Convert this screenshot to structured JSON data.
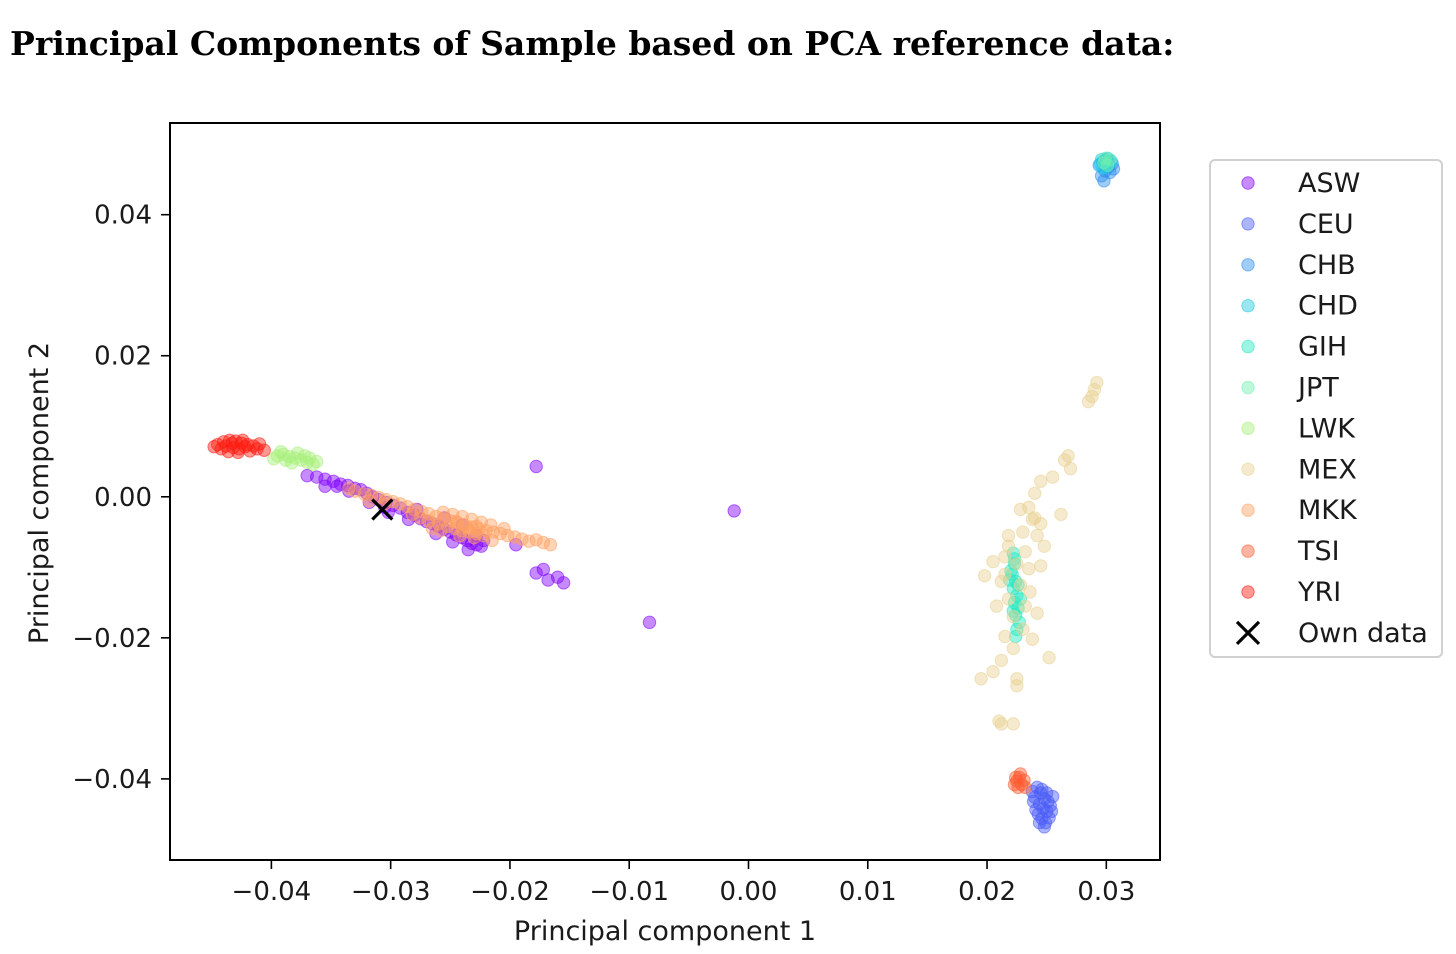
{
  "page": {
    "title": "Principal Components of Sample based on PCA reference data:"
  },
  "chart_data": {
    "type": "scatter",
    "title": "",
    "xlabel": "Principal component 1",
    "ylabel": "Principal component 2",
    "xlim": [
      -0.0485,
      0.0345
    ],
    "ylim": [
      -0.0515,
      0.053
    ],
    "xticks": [
      -0.04,
      -0.03,
      -0.02,
      -0.01,
      0.0,
      0.01,
      0.02,
      0.03
    ],
    "xtick_labels": [
      "−0.04",
      "−0.03",
      "−0.02",
      "−0.01",
      "0.00",
      "0.01",
      "0.02",
      "0.03"
    ],
    "yticks": [
      -0.04,
      -0.02,
      0.0,
      0.02,
      0.04
    ],
    "ytick_labels": [
      "−0.04",
      "−0.02",
      "0.00",
      "0.02",
      "0.04"
    ],
    "grid": false,
    "legend_position": "outside-right",
    "marker_opacity": 0.45,
    "series": [
      {
        "name": "ASW",
        "color": "#8000ff",
        "points": [
          [
            -0.0355,
            0.0025
          ],
          [
            -0.0348,
            0.0022
          ],
          [
            -0.0342,
            0.0018
          ],
          [
            -0.0336,
            0.0016
          ],
          [
            -0.033,
            0.0012
          ],
          [
            -0.0325,
            0.001
          ],
          [
            -0.032,
            0.0005
          ],
          [
            -0.0315,
            0.0
          ],
          [
            -0.031,
            -0.0004
          ],
          [
            -0.0304,
            -0.0008
          ],
          [
            -0.0298,
            -0.0012
          ],
          [
            -0.0292,
            -0.0016
          ],
          [
            -0.0286,
            -0.0022
          ],
          [
            -0.028,
            -0.0026
          ],
          [
            -0.0275,
            -0.0031
          ],
          [
            -0.027,
            -0.0035
          ],
          [
            -0.0265,
            -0.0038
          ],
          [
            -0.026,
            -0.0042
          ],
          [
            -0.0255,
            -0.0046
          ],
          [
            -0.025,
            -0.005
          ],
          [
            -0.0245,
            -0.0054
          ],
          [
            -0.024,
            -0.0058
          ],
          [
            -0.0236,
            -0.0062
          ],
          [
            -0.0232,
            -0.0066
          ],
          [
            -0.0228,
            -0.0068
          ],
          [
            -0.0224,
            -0.007
          ],
          [
            -0.0235,
            -0.0075
          ],
          [
            -0.0355,
            0.0015
          ],
          [
            -0.0335,
            0.0008
          ],
          [
            -0.0305,
            -0.0015
          ],
          [
            -0.0285,
            -0.0032
          ],
          [
            -0.0262,
            -0.0052
          ],
          [
            -0.0248,
            -0.0064
          ],
          [
            -0.024,
            -0.004
          ],
          [
            -0.0255,
            -0.003
          ],
          [
            -0.0278,
            -0.0018
          ],
          [
            -0.0195,
            -0.0068
          ],
          [
            -0.0178,
            0.0043
          ],
          [
            -0.0178,
            -0.0108
          ],
          [
            -0.0172,
            -0.0103
          ],
          [
            -0.0168,
            -0.0118
          ],
          [
            -0.016,
            -0.0114
          ],
          [
            -0.0155,
            -0.0122
          ],
          [
            -0.0083,
            -0.0178
          ],
          [
            -0.0012,
            -0.002
          ],
          [
            -0.037,
            0.003
          ],
          [
            -0.0362,
            0.0028
          ],
          [
            -0.0345,
            0.0015
          ],
          [
            -0.0318,
            -0.0008
          ],
          [
            -0.0302,
            -0.0022
          ],
          [
            -0.0228,
            -0.0055
          ],
          [
            -0.0222,
            -0.0062
          ]
        ]
      },
      {
        "name": "CEU",
        "color": "#4a5cf6",
        "points": [
          [
            0.0242,
            -0.0412
          ],
          [
            0.0245,
            -0.042
          ],
          [
            0.0248,
            -0.0428
          ],
          [
            0.0251,
            -0.0432
          ],
          [
            0.0244,
            -0.0436
          ],
          [
            0.0247,
            -0.0442
          ],
          [
            0.025,
            -0.0446
          ],
          [
            0.0253,
            -0.0438
          ],
          [
            0.024,
            -0.0426
          ],
          [
            0.0238,
            -0.0418
          ],
          [
            0.0243,
            -0.045
          ],
          [
            0.0246,
            -0.0456
          ],
          [
            0.0249,
            -0.0462
          ],
          [
            0.0252,
            -0.0455
          ],
          [
            0.0255,
            -0.0425
          ],
          [
            0.0241,
            -0.0444
          ],
          [
            0.0248,
            -0.0468
          ],
          [
            0.0244,
            -0.0462
          ],
          [
            0.0254,
            -0.0446
          ],
          [
            0.0239,
            -0.0432
          ],
          [
            0.0246,
            -0.0415
          ],
          [
            0.025,
            -0.042
          ]
        ]
      },
      {
        "name": "CHB",
        "color": "#2c8ff0",
        "points": [
          [
            0.0296,
            0.0455
          ],
          [
            0.0299,
            0.0462
          ],
          [
            0.0302,
            0.0468
          ],
          [
            0.0305,
            0.0472
          ],
          [
            0.0297,
            0.0475
          ],
          [
            0.03,
            0.0478
          ],
          [
            0.0303,
            0.046
          ],
          [
            0.0298,
            0.0448
          ],
          [
            0.0306,
            0.0465
          ],
          [
            0.0294,
            0.047
          ]
        ]
      },
      {
        "name": "CHD",
        "color": "#1ec8e0",
        "points": [
          [
            0.0295,
            0.0472
          ],
          [
            0.0298,
            0.0476
          ],
          [
            0.0301,
            0.048
          ],
          [
            0.0304,
            0.0476
          ],
          [
            0.0297,
            0.0466
          ],
          [
            0.0302,
            0.0472
          ],
          [
            0.03,
            0.0468
          ],
          [
            0.0296,
            0.0478
          ]
        ]
      },
      {
        "name": "GIH",
        "color": "#22e8c0",
        "points": [
          [
            0.0222,
            -0.008
          ],
          [
            0.0223,
            -0.0095
          ],
          [
            0.0221,
            -0.011
          ],
          [
            0.0224,
            -0.012
          ],
          [
            0.0222,
            -0.013
          ],
          [
            0.0225,
            -0.014
          ],
          [
            0.0223,
            -0.015
          ],
          [
            0.0226,
            -0.0158
          ],
          [
            0.0224,
            -0.0168
          ],
          [
            0.0227,
            -0.0178
          ],
          [
            0.0225,
            -0.0188
          ],
          [
            0.022,
            -0.0105
          ],
          [
            0.0228,
            -0.0145
          ],
          [
            0.0222,
            -0.0162
          ],
          [
            0.0226,
            -0.0125
          ],
          [
            0.0223,
            -0.0088
          ],
          [
            0.0219,
            -0.0118
          ],
          [
            0.0224,
            -0.0198
          ]
        ]
      },
      {
        "name": "JPT",
        "color": "#6ff0b0",
        "points": [
          [
            0.0298,
            0.0474
          ],
          [
            0.0301,
            0.047
          ],
          [
            0.0303,
            0.0478
          ],
          [
            0.0299,
            0.048
          ]
        ]
      },
      {
        "name": "LWK",
        "color": "#a8f07a",
        "points": [
          [
            -0.0395,
            0.0058
          ],
          [
            -0.039,
            0.006
          ],
          [
            -0.0385,
            0.0057
          ],
          [
            -0.038,
            0.0055
          ],
          [
            -0.0375,
            0.0052
          ],
          [
            -0.037,
            0.0049
          ],
          [
            -0.0365,
            0.0046
          ],
          [
            -0.0388,
            0.0052
          ],
          [
            -0.0378,
            0.0062
          ],
          [
            -0.0372,
            0.0058
          ],
          [
            -0.0383,
            0.0048
          ],
          [
            -0.0368,
            0.0055
          ],
          [
            -0.0362,
            0.005
          ],
          [
            -0.0392,
            0.0064
          ],
          [
            -0.0398,
            0.0054
          ]
        ]
      },
      {
        "name": "MEX",
        "color": "#e8d090",
        "points": [
          [
            0.0292,
            0.0162
          ],
          [
            0.029,
            0.0152
          ],
          [
            0.0288,
            0.0142
          ],
          [
            0.0285,
            0.0135
          ],
          [
            0.0268,
            0.0058
          ],
          [
            0.0265,
            0.0052
          ],
          [
            0.027,
            0.004
          ],
          [
            0.0255,
            0.0028
          ],
          [
            0.0245,
            0.0022
          ],
          [
            0.024,
            0.0005
          ],
          [
            0.0262,
            -0.0025
          ],
          [
            0.0235,
            -0.0015
          ],
          [
            0.0228,
            -0.0018
          ],
          [
            0.0238,
            -0.0032
          ],
          [
            0.0245,
            -0.0038
          ],
          [
            0.023,
            -0.005
          ],
          [
            0.0242,
            -0.0055
          ],
          [
            0.0248,
            -0.007
          ],
          [
            0.0218,
            -0.007
          ],
          [
            0.0215,
            -0.0085
          ],
          [
            0.0225,
            -0.0095
          ],
          [
            0.0235,
            -0.0102
          ],
          [
            0.0245,
            -0.0098
          ],
          [
            0.0205,
            -0.0092
          ],
          [
            0.0198,
            -0.0112
          ],
          [
            0.0212,
            -0.012
          ],
          [
            0.0228,
            -0.0125
          ],
          [
            0.0236,
            -0.0135
          ],
          [
            0.0218,
            -0.0145
          ],
          [
            0.0208,
            -0.0155
          ],
          [
            0.0232,
            -0.0155
          ],
          [
            0.0242,
            -0.0165
          ],
          [
            0.0222,
            -0.017
          ],
          [
            0.023,
            -0.0188
          ],
          [
            0.0215,
            -0.0198
          ],
          [
            0.0238,
            -0.0202
          ],
          [
            0.0222,
            -0.0215
          ],
          [
            0.0212,
            -0.0232
          ],
          [
            0.0205,
            -0.0248
          ],
          [
            0.0252,
            -0.0228
          ],
          [
            0.0225,
            -0.0258
          ],
          [
            0.0225,
            -0.0268
          ],
          [
            0.0195,
            -0.0258
          ],
          [
            0.021,
            -0.0318
          ],
          [
            0.0212,
            -0.0322
          ],
          [
            0.0222,
            -0.0322
          ],
          [
            0.024,
            -0.003
          ],
          [
            0.0218,
            -0.0055
          ],
          [
            0.0232,
            -0.0078
          ],
          [
            0.0215,
            -0.011
          ]
        ]
      },
      {
        "name": "MKK",
        "color": "#ffa060",
        "points": [
          [
            -0.0335,
            0.0012
          ],
          [
            -0.033,
            0.0008
          ],
          [
            -0.0322,
            0.0004
          ],
          [
            -0.0316,
            0.0002
          ],
          [
            -0.031,
            -0.0001
          ],
          [
            -0.0304,
            -0.0004
          ],
          [
            -0.0298,
            -0.0007
          ],
          [
            -0.0292,
            -0.001
          ],
          [
            -0.0286,
            -0.0014
          ],
          [
            -0.028,
            -0.0018
          ],
          [
            -0.0274,
            -0.0021
          ],
          [
            -0.0268,
            -0.0024
          ],
          [
            -0.0262,
            -0.0028
          ],
          [
            -0.0256,
            -0.0031
          ],
          [
            -0.025,
            -0.0034
          ],
          [
            -0.0244,
            -0.0037
          ],
          [
            -0.0238,
            -0.004
          ],
          [
            -0.0232,
            -0.0043
          ],
          [
            -0.0226,
            -0.0046
          ],
          [
            -0.022,
            -0.0048
          ],
          [
            -0.0214,
            -0.005
          ],
          [
            -0.0208,
            -0.0052
          ],
          [
            -0.0202,
            -0.0055
          ],
          [
            -0.0196,
            -0.0057
          ],
          [
            -0.019,
            -0.006
          ],
          [
            -0.0184,
            -0.0063
          ],
          [
            -0.0178,
            -0.0061
          ],
          [
            -0.0172,
            -0.0065
          ],
          [
            -0.0166,
            -0.0068
          ],
          [
            -0.0268,
            -0.0034
          ],
          [
            -0.026,
            -0.0038
          ],
          [
            -0.0252,
            -0.0042
          ],
          [
            -0.0246,
            -0.0045
          ],
          [
            -0.024,
            -0.0048
          ],
          [
            -0.0234,
            -0.005
          ],
          [
            -0.0228,
            -0.0052
          ],
          [
            -0.0222,
            -0.0055
          ],
          [
            -0.0256,
            -0.0022
          ],
          [
            -0.0248,
            -0.0025
          ],
          [
            -0.024,
            -0.0028
          ],
          [
            -0.0232,
            -0.0032
          ],
          [
            -0.0224,
            -0.0036
          ],
          [
            -0.0216,
            -0.004
          ],
          [
            -0.0265,
            -0.0045
          ],
          [
            -0.0258,
            -0.0048
          ],
          [
            -0.0242,
            -0.0055
          ],
          [
            -0.023,
            -0.0058
          ],
          [
            -0.0215,
            -0.0062
          ],
          [
            -0.0245,
            -0.0035
          ],
          [
            -0.0236,
            -0.0044
          ],
          [
            -0.0228,
            -0.0042
          ],
          [
            -0.0205,
            -0.0045
          ],
          [
            -0.0275,
            -0.003
          ],
          [
            -0.0282,
            -0.0025
          ],
          [
            -0.0305,
            -0.001
          ],
          [
            -0.0318,
            -0.0006
          ]
        ]
      },
      {
        "name": "TSI",
        "color": "#ff5a30",
        "points": [
          [
            0.0225,
            -0.0403
          ],
          [
            0.0227,
            -0.0398
          ],
          [
            0.0229,
            -0.0408
          ],
          [
            0.0226,
            -0.0412
          ],
          [
            0.0231,
            -0.0402
          ],
          [
            0.0223,
            -0.0408
          ],
          [
            0.0228,
            -0.0393
          ],
          [
            0.0232,
            -0.0412
          ],
          [
            0.0224,
            -0.0398
          ]
        ]
      },
      {
        "name": "YRI",
        "color": "#ff1a10",
        "points": [
          [
            -0.0445,
            0.0074
          ],
          [
            -0.044,
            0.0078
          ],
          [
            -0.0435,
            0.008
          ],
          [
            -0.043,
            0.0079
          ],
          [
            -0.0425,
            0.0076
          ],
          [
            -0.042,
            0.0074
          ],
          [
            -0.0438,
            0.0072
          ],
          [
            -0.0432,
            0.007
          ],
          [
            -0.0427,
            0.0068
          ],
          [
            -0.0422,
            0.0071
          ],
          [
            -0.0415,
            0.0072
          ],
          [
            -0.0412,
            0.0068
          ],
          [
            -0.0442,
            0.0068
          ],
          [
            -0.0436,
            0.0064
          ],
          [
            -0.0428,
            0.0063
          ],
          [
            -0.0418,
            0.0065
          ],
          [
            -0.0448,
            0.0071
          ],
          [
            -0.0433,
            0.0076
          ],
          [
            -0.0424,
            0.008
          ],
          [
            -0.041,
            0.0075
          ],
          [
            -0.0406,
            0.0066
          ]
        ]
      },
      {
        "name": "Own data",
        "color": "#000000",
        "marker": "x",
        "points": [
          [
            -0.0307,
            -0.0018
          ]
        ]
      }
    ]
  }
}
